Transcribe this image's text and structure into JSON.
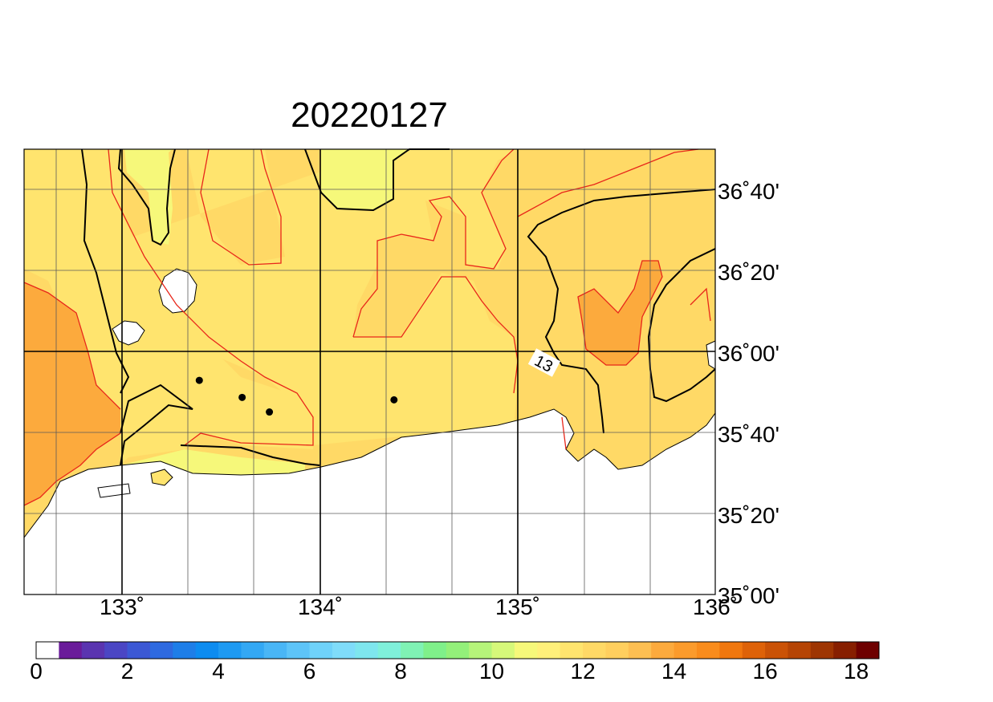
{
  "title": "20220127",
  "lon_labels": [
    "133˚",
    "134˚",
    "135˚",
    "136˚"
  ],
  "lat_labels": [
    "36˚40'",
    "36˚20'",
    "36˚00'",
    "35˚40'",
    "35˚20'",
    "35˚00'"
  ],
  "contour_label": "13",
  "colorbar": {
    "min": 0,
    "max": 18.5,
    "step": 0.5,
    "tick_labels": [
      "0",
      "2",
      "4",
      "6",
      "8",
      "10",
      "12",
      "14",
      "16",
      "18"
    ],
    "colors": [
      "#ffffff",
      "#6a1b9a",
      "#5a34b0",
      "#4b46c4",
      "#3c58d4",
      "#2e6ae0",
      "#1e7ee8",
      "#0d8cf0",
      "#1e9af2",
      "#33a8f4",
      "#49b6f6",
      "#5dc4f8",
      "#6fd2fa",
      "#7fdcfa",
      "#7ee6ee",
      "#7ff0da",
      "#7ff2b4",
      "#7ff08a",
      "#93f07a",
      "#b6f47a",
      "#d6f87a",
      "#f6f87a",
      "#fff07a",
      "#ffe46e",
      "#ffd966",
      "#ffcf5e",
      "#fdbf52",
      "#fcaa3d",
      "#fb9b2c",
      "#f98c1c",
      "#f0770e",
      "#de6208",
      "#ca5206",
      "#b54404",
      "#9e3502",
      "#871f00",
      "#6e0000"
    ]
  },
  "field_colors": {
    "level_11_5": "#f6f87a",
    "level_12": "#fff07a",
    "level_12_5": "#ffe46e",
    "level_13": "#ffd966",
    "level_14": "#fcaa3d",
    "land": "#ffffff"
  },
  "stations": [
    {
      "lon": 133.35,
      "lat": 35.88
    },
    {
      "lon": 133.57,
      "lat": 35.81
    },
    {
      "lon": 133.71,
      "lat": 35.75
    },
    {
      "lon": 134.35,
      "lat": 35.8
    }
  ],
  "map_extent": {
    "lon_min": 132.45,
    "lon_max": 136.0,
    "lat_min": 35.0,
    "lat_max": 36.83
  }
}
